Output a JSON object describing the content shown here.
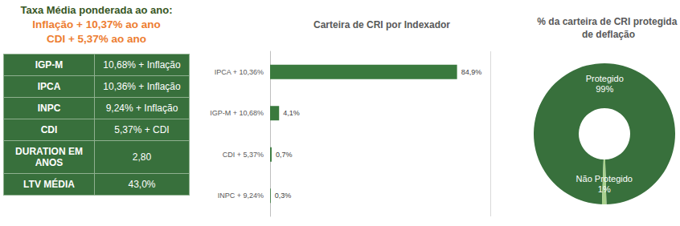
{
  "header": {
    "title": "Taxa Média ponderada ao ano:",
    "lines": [
      "Inflação + 10,37% ao ano",
      "CDI + 5,37% ao ano"
    ]
  },
  "table": {
    "rows": [
      [
        "IGP-M",
        "10,68% + Inflação"
      ],
      [
        "IPCA",
        "10,36% + Inflação"
      ],
      [
        "INPC",
        "9,24% + Inflação"
      ],
      [
        "CDI",
        "5,37% + CDI"
      ],
      [
        "DURATION EM ANOS",
        "2,80"
      ],
      [
        "LTV MÉDIA",
        "43,0%"
      ]
    ]
  },
  "chart_data": [
    {
      "type": "bar",
      "title": "Carteira de CRI por Indexador",
      "orientation": "horizontal",
      "categories": [
        "IPCA + 10,36%",
        "IGP-M + 10,68%",
        "CDI + 5,37%",
        "INPC + 9,24%"
      ],
      "values": [
        84.9,
        4.1,
        0.7,
        0.3
      ],
      "value_labels": [
        "84,9%",
        "4,1%",
        "0,7%",
        "0,3%"
      ],
      "data_labels": true,
      "color": "#3a7a3e",
      "xlim": [
        0,
        100
      ],
      "xticks": [
        0,
        100
      ],
      "grid": true,
      "tick_labels": "y"
    },
    {
      "type": "pie",
      "title": "% da carteira de CRI protegida de deflação",
      "categories": [
        "Protegido",
        "Não Protegido"
      ],
      "values": [
        99,
        1
      ],
      "value_labels": [
        "99%",
        "1%"
      ],
      "data_labels": true,
      "colors": [
        "#38703c",
        "#a9d18e"
      ]
    }
  ]
}
